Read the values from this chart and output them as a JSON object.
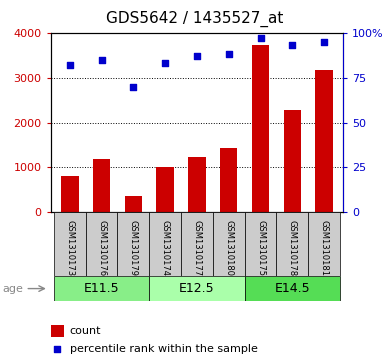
{
  "title": "GDS5642 / 1435527_at",
  "samples": [
    "GSM1310173",
    "GSM1310176",
    "GSM1310179",
    "GSM1310174",
    "GSM1310177",
    "GSM1310180",
    "GSM1310175",
    "GSM1310178",
    "GSM1310181"
  ],
  "counts": [
    820,
    1180,
    360,
    1020,
    1230,
    1440,
    3720,
    2280,
    3180
  ],
  "percentiles": [
    82,
    85,
    70,
    83,
    87,
    88,
    97,
    93,
    95
  ],
  "ylim_left": [
    0,
    4000
  ],
  "ylim_right": [
    0,
    100
  ],
  "yticks_left": [
    0,
    1000,
    2000,
    3000,
    4000
  ],
  "yticks_right": [
    0,
    25,
    50,
    75,
    100
  ],
  "yticklabels_right": [
    "0",
    "25",
    "50",
    "75",
    "100%"
  ],
  "bar_color": "#cc0000",
  "dot_color": "#0000cc",
  "age_groups": [
    {
      "label": "E11.5",
      "start": 0,
      "end": 3,
      "color": "#88ee88"
    },
    {
      "label": "E12.5",
      "start": 3,
      "end": 6,
      "color": "#aaffaa"
    },
    {
      "label": "E14.5",
      "start": 6,
      "end": 9,
      "color": "#55dd55"
    }
  ],
  "legend_count": "count",
  "legend_pct": "percentile rank within the sample",
  "title_fontsize": 11,
  "tick_fontsize": 8,
  "sample_fontsize": 6,
  "age_fontsize": 9,
  "legend_fontsize": 8
}
